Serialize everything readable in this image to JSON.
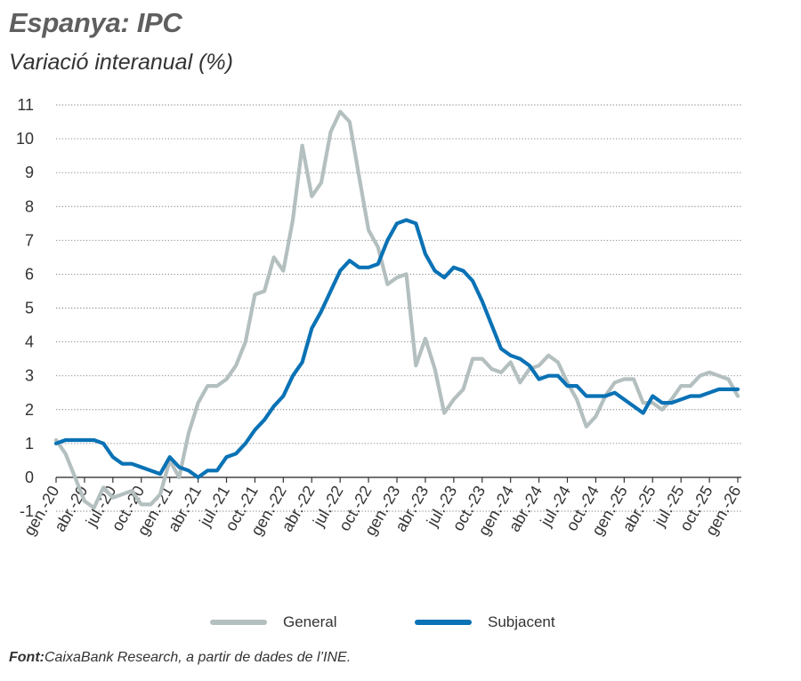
{
  "header": {
    "title": "Espanya: IPC",
    "subtitle": "Variació interanual (%)"
  },
  "legend": {
    "general": "General",
    "subjacent": "Subjacent"
  },
  "source": {
    "label": "Font:",
    "text": "CaixaBank Research, a partir de dades de l’INE."
  },
  "colors": {
    "general": "#b4bfbf",
    "subjacent": "#0a72b5",
    "grid": "#7a7a7a",
    "axis": "#333333"
  },
  "chart_data": {
    "type": "line",
    "title": "Espanya: IPC",
    "ylabel": "Variació interanual (%)",
    "ylim": [
      -1,
      11
    ],
    "yticks": [
      -1,
      0,
      1,
      2,
      3,
      4,
      5,
      6,
      7,
      8,
      9,
      10,
      11
    ],
    "grid": true,
    "legend_position": "bottom",
    "x_tick_labels": [
      "gen.-20",
      "abr.-20",
      "jul.-20",
      "oct.-20",
      "gen.-21",
      "abr.-21",
      "jul.-21",
      "oct.-21",
      "gen.-22",
      "abr.-22",
      "jul.-22",
      "oct.-22",
      "gen.-23",
      "abr.-23",
      "jul.-23",
      "oct.-23",
      "gen.-24",
      "abr.-24",
      "jul.-24",
      "oct.-24",
      "gen.-25",
      "abr.-25",
      "jul.-25",
      "oct.-25",
      "gen.-26"
    ],
    "x_start": "gen.-20",
    "x_end": "gen.-26",
    "series": [
      {
        "name": "General",
        "values": [
          1.1,
          0.7,
          0.0,
          -0.7,
          -0.9,
          -0.3,
          -0.6,
          -0.5,
          -0.4,
          -0.8,
          -0.8,
          -0.5,
          0.5,
          0.0,
          1.3,
          2.2,
          2.7,
          2.7,
          2.9,
          3.3,
          4.0,
          5.4,
          5.5,
          6.5,
          6.1,
          7.6,
          9.8,
          8.3,
          8.7,
          10.2,
          10.8,
          10.5,
          8.9,
          7.3,
          6.8,
          5.7,
          5.9,
          6.0,
          3.3,
          4.1,
          3.2,
          1.9,
          2.3,
          2.6,
          3.5,
          3.5,
          3.2,
          3.1,
          3.4,
          2.8,
          3.2,
          3.3,
          3.6,
          3.4,
          2.8,
          2.3,
          1.5,
          1.8,
          2.4,
          2.8,
          2.9,
          2.9,
          2.2,
          2.2,
          2.0,
          2.3,
          2.7,
          2.7,
          3.0,
          3.1,
          3.0,
          2.9,
          2.4
        ]
      },
      {
        "name": "Subjacent",
        "values": [
          1.0,
          1.1,
          1.1,
          1.1,
          1.1,
          1.0,
          0.6,
          0.4,
          0.4,
          0.3,
          0.2,
          0.1,
          0.6,
          0.3,
          0.2,
          0.0,
          0.2,
          0.2,
          0.6,
          0.7,
          1.0,
          1.4,
          1.7,
          2.1,
          2.4,
          3.0,
          3.4,
          4.4,
          4.9,
          5.5,
          6.1,
          6.4,
          6.2,
          6.2,
          6.3,
          7.0,
          7.5,
          7.6,
          7.5,
          6.6,
          6.1,
          5.9,
          6.2,
          6.1,
          5.8,
          5.2,
          4.5,
          3.8,
          3.6,
          3.5,
          3.3,
          2.9,
          3.0,
          3.0,
          2.7,
          2.7,
          2.4,
          2.4,
          2.4,
          2.5,
          2.3,
          2.1,
          1.9,
          2.4,
          2.2,
          2.2,
          2.3,
          2.4,
          2.4,
          2.5,
          2.6,
          2.6,
          2.6
        ]
      }
    ]
  }
}
